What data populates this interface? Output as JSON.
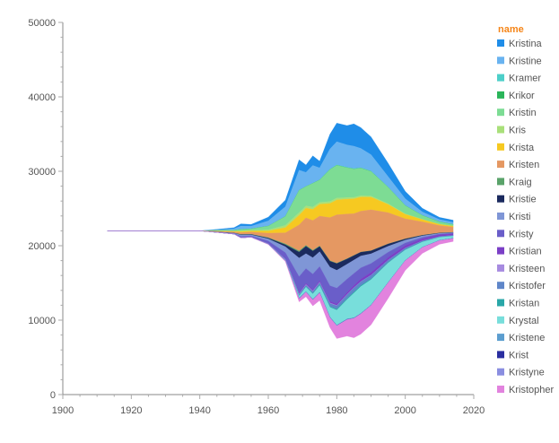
{
  "chart_data": {
    "type": "area",
    "offset": "center",
    "xlabel": "",
    "ylabel": "",
    "x_ticks": [
      "1900",
      "1920",
      "1940",
      "1960",
      "1980",
      "2000",
      "2020"
    ],
    "y_ticks": [
      "0",
      "10000",
      "20000",
      "30000",
      "40000",
      "50000"
    ],
    "xlim": [
      1900,
      2020
    ],
    "ylim": [
      0,
      50000
    ],
    "legend": {
      "title": "name",
      "position": "right"
    },
    "x": [
      1913,
      1930,
      1940,
      1945,
      1950,
      1952,
      1955,
      1960,
      1965,
      1969,
      1971,
      1973,
      1975,
      1978,
      1980,
      1983,
      1985,
      1987,
      1990,
      1995,
      2000,
      2005,
      2010,
      2014
    ],
    "series": [
      {
        "name": "Kristina",
        "color": "#1f8de8",
        "values": [
          0,
          0,
          0,
          80,
          150,
          300,
          250,
          500,
          900,
          1400,
          1000,
          1300,
          900,
          2000,
          2500,
          2600,
          3000,
          2800,
          2400,
          1800,
          1000,
          500,
          300,
          300
        ]
      },
      {
        "name": "Kristine",
        "color": "#69b3f0",
        "values": [
          0,
          0,
          0,
          80,
          200,
          450,
          350,
          700,
          1300,
          2700,
          1900,
          2400,
          1600,
          2700,
          3100,
          3000,
          3000,
          2600,
          2200,
          1400,
          900,
          450,
          280,
          250
        ]
      },
      {
        "name": "Kramer",
        "color": "#4dcfc9",
        "values": [
          0,
          0,
          0,
          0,
          0,
          0,
          0,
          0,
          0,
          0,
          0,
          0,
          20,
          40,
          60,
          60,
          60,
          50,
          40,
          30,
          20,
          20,
          20,
          20
        ]
      },
      {
        "name": "Krikor",
        "color": "#2bb55a",
        "values": [
          0,
          0,
          0,
          0,
          0,
          0,
          0,
          0,
          0,
          0,
          0,
          0,
          10,
          10,
          10,
          10,
          10,
          10,
          10,
          10,
          10,
          10,
          10,
          10
        ]
      },
      {
        "name": "Kristin",
        "color": "#7ddc94",
        "values": [
          0,
          0,
          0,
          50,
          100,
          200,
          200,
          500,
          1200,
          3000,
          2600,
          3200,
          3000,
          4300,
          4400,
          4000,
          3800,
          3700,
          3300,
          2200,
          1100,
          500,
          300,
          200
        ]
      },
      {
        "name": "Kris",
        "color": "#a9e07a",
        "values": [
          0,
          0,
          0,
          30,
          50,
          80,
          80,
          150,
          300,
          350,
          300,
          300,
          250,
          250,
          250,
          220,
          200,
          180,
          150,
          100,
          60,
          40,
          30,
          30
        ]
      },
      {
        "name": "Krista",
        "color": "#f6c921",
        "values": [
          0,
          0,
          0,
          40,
          80,
          150,
          150,
          300,
          700,
          1300,
          1300,
          1500,
          1600,
          1900,
          2000,
          2000,
          2000,
          1900,
          1700,
          1100,
          600,
          300,
          150,
          120
        ]
      },
      {
        "name": "Kristen",
        "color": "#e59862",
        "values": [
          0,
          0,
          0,
          80,
          150,
          250,
          300,
          600,
          1500,
          3500,
          3700,
          4000,
          4000,
          5800,
          6500,
          6000,
          5600,
          5500,
          5500,
          4200,
          2700,
          1800,
          1000,
          700
        ]
      },
      {
        "name": "Kraig",
        "color": "#5aa36a",
        "values": [
          0,
          0,
          0,
          0,
          0,
          10,
          20,
          60,
          120,
          150,
          120,
          100,
          80,
          60,
          50,
          40,
          30,
          20,
          15,
          10,
          10,
          10,
          10,
          10
        ]
      },
      {
        "name": "Kristie",
        "color": "#1b2a5e",
        "values": [
          0,
          0,
          0,
          10,
          20,
          50,
          50,
          100,
          250,
          800,
          1000,
          900,
          700,
          800,
          900,
          700,
          600,
          500,
          400,
          300,
          150,
          80,
          40,
          30
        ]
      },
      {
        "name": "Kristi",
        "color": "#7f96d6",
        "values": [
          0,
          0,
          0,
          20,
          50,
          200,
          150,
          300,
          800,
          2500,
          2000,
          2200,
          2000,
          2500,
          2400,
          2000,
          1800,
          1600,
          1300,
          800,
          400,
          200,
          100,
          80
        ]
      },
      {
        "name": "Kristy",
        "color": "#6a5ec9",
        "values": [
          0,
          0,
          0,
          20,
          50,
          150,
          120,
          300,
          800,
          2200,
          2000,
          2100,
          1900,
          2100,
          2100,
          1800,
          1600,
          1500,
          1200,
          700,
          350,
          180,
          90,
          70
        ]
      },
      {
        "name": "Kristian",
        "color": "#7b3fc6",
        "values": [
          0,
          0,
          0,
          0,
          10,
          20,
          20,
          40,
          80,
          120,
          140,
          160,
          180,
          200,
          220,
          260,
          300,
          340,
          380,
          360,
          320,
          280,
          240,
          220
        ]
      },
      {
        "name": "Kristeen",
        "color": "#a78be0",
        "values": [
          0,
          0,
          0,
          0,
          0,
          10,
          10,
          20,
          40,
          80,
          80,
          80,
          70,
          70,
          60,
          50,
          40,
          30,
          20,
          15,
          10,
          10,
          10,
          10
        ]
      },
      {
        "name": "Kristofer",
        "color": "#5f86c9",
        "values": [
          0,
          0,
          0,
          0,
          0,
          0,
          10,
          20,
          60,
          150,
          200,
          250,
          300,
          400,
          450,
          500,
          550,
          500,
          450,
          300,
          200,
          120,
          80,
          60
        ]
      },
      {
        "name": "Kristan",
        "color": "#2aa7a8",
        "values": [
          0,
          0,
          0,
          0,
          0,
          0,
          0,
          10,
          20,
          50,
          70,
          80,
          100,
          120,
          130,
          140,
          150,
          140,
          120,
          80,
          50,
          30,
          20,
          20
        ]
      },
      {
        "name": "Krystal",
        "color": "#78dedb",
        "values": [
          0,
          0,
          0,
          0,
          0,
          0,
          10,
          20,
          50,
          300,
          600,
          700,
          900,
          1300,
          2000,
          2600,
          3300,
          3600,
          3400,
          2600,
          1400,
          700,
          400,
          300
        ]
      },
      {
        "name": "Kristene",
        "color": "#5c9ecf",
        "values": [
          0,
          0,
          0,
          0,
          0,
          0,
          0,
          10,
          20,
          40,
          40,
          50,
          50,
          60,
          60,
          60,
          60,
          50,
          40,
          30,
          20,
          10,
          10,
          10
        ]
      },
      {
        "name": "Krist",
        "color": "#2a2ea0",
        "values": [
          0,
          0,
          0,
          0,
          0,
          0,
          0,
          0,
          10,
          10,
          10,
          10,
          10,
          10,
          10,
          10,
          10,
          10,
          10,
          10,
          10,
          10,
          10,
          10
        ]
      },
      {
        "name": "Kristyne",
        "color": "#8a8ee0",
        "values": [
          0,
          0,
          0,
          0,
          0,
          0,
          0,
          10,
          20,
          40,
          40,
          40,
          40,
          40,
          40,
          40,
          30,
          30,
          20,
          15,
          10,
          10,
          10,
          10
        ]
      },
      {
        "name": "Kristopher",
        "color": "#e283de",
        "values": [
          0,
          0,
          0,
          0,
          0,
          0,
          10,
          30,
          100,
          400,
          600,
          800,
          1000,
          1300,
          1700,
          2200,
          2600,
          2700,
          2600,
          2100,
          1300,
          800,
          500,
          400
        ]
      }
    ]
  }
}
